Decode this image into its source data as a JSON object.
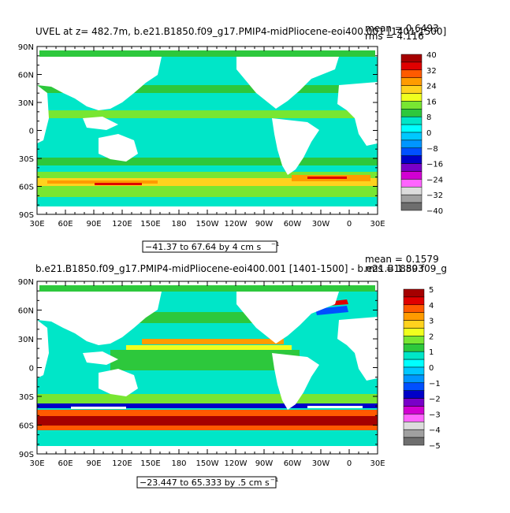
{
  "chart_data": [
    {
      "type": "heatmap",
      "title": "UVEL at z= 482.7m, b.e21.B1850.f09_g17.PMIP4-midPliocene-eoi400.001 [1401-1500]",
      "stats": [
        "mean = 0.6493",
        "rms = 4.116"
      ],
      "x_ticks": [
        "30E",
        "60E",
        "90E",
        "120E",
        "150E",
        "180",
        "150W",
        "120W",
        "90W",
        "60W",
        "30W",
        "0",
        "30E"
      ],
      "y_ticks": [
        "90N",
        "60N",
        "30N",
        "0",
        "30S",
        "60S",
        "90S"
      ],
      "contour_info": "−41.37 to 67.64 by 4 cm s",
      "contour_sup": "−1",
      "colorbar": {
        "labels": [
          "40",
          "32",
          "24",
          "16",
          "8",
          "0",
          "−8",
          "−16",
          "−24",
          "−32",
          "−40"
        ],
        "colors": [
          "#a50000",
          "#e00000",
          "#ff5a00",
          "#ff9b00",
          "#ffd21e",
          "#f0ff1e",
          "#78e632",
          "#2dc83c",
          "#00e6c8",
          "#00ffff",
          "#00c8ff",
          "#0096ff",
          "#0050ff",
          "#0000c8",
          "#7800c8",
          "#d200d2",
          "#ff64ff",
          "#dcdcdc",
          "#a0a0a0",
          "#6e6e6e"
        ]
      }
    },
    {
      "type": "heatmap",
      "title": "b.e21.B1850.f09_g17.PMIP4-midPliocene-eoi400.001 [1401-1500] - b.e21.B1850.f09_g",
      "stats": [
        "mean = 0.1579",
        "rms = 1.893"
      ],
      "x_ticks": [
        "30E",
        "60E",
        "90E",
        "120E",
        "150E",
        "180",
        "150W",
        "120W",
        "90W",
        "60W",
        "30W",
        "0",
        "30E"
      ],
      "y_ticks": [
        "90N",
        "60N",
        "30N",
        "0",
        "30S",
        "60S",
        "90S"
      ],
      "contour_info": "−23.447 to 65.333 by .5 cm s",
      "contour_sup": "−1",
      "colorbar": {
        "labels": [
          "5",
          "4",
          "3",
          "2",
          "1",
          "0",
          "−1",
          "−2",
          "−3",
          "−4",
          "−5"
        ],
        "colors": [
          "#a50000",
          "#e00000",
          "#ff5a00",
          "#ff9b00",
          "#ffd21e",
          "#f0ff1e",
          "#78e632",
          "#2dc83c",
          "#00e6c8",
          "#00ffff",
          "#00c8ff",
          "#0096ff",
          "#0050ff",
          "#0000c8",
          "#7800c8",
          "#d200d2",
          "#ff64ff",
          "#dcdcdc",
          "#a0a0a0",
          "#6e6e6e"
        ]
      }
    }
  ]
}
